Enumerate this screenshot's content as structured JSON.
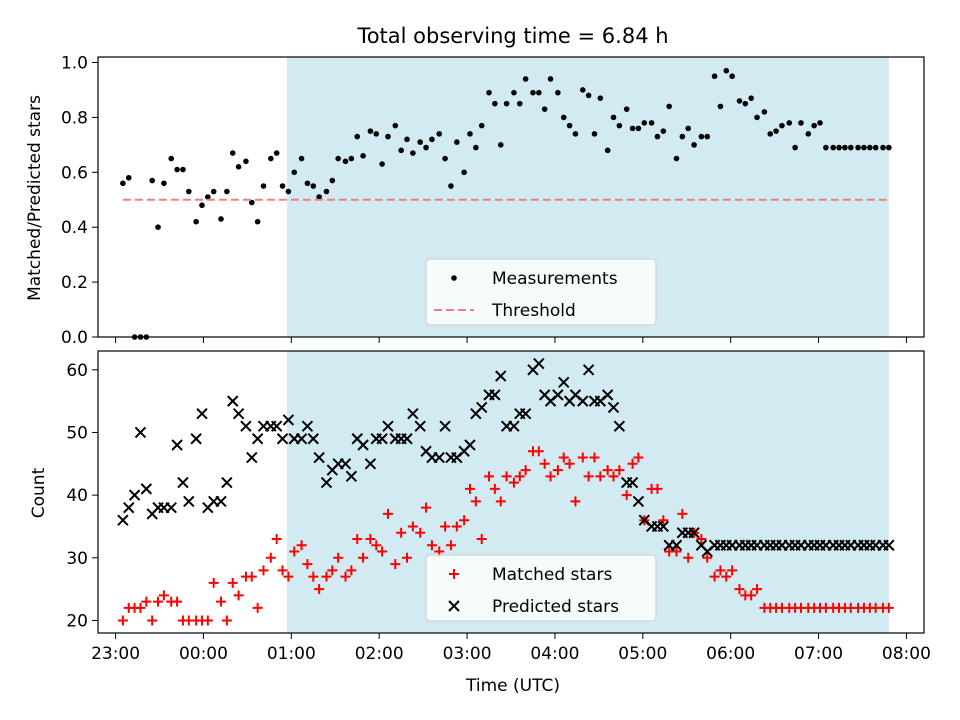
{
  "title": "Total observing time = 6.84 h",
  "xlabel": "Time (UTC)",
  "x_ticks": [
    "23:00",
    "00:00",
    "01:00",
    "02:00",
    "03:00",
    "04:00",
    "05:00",
    "06:00",
    "07:00",
    "08:00"
  ],
  "colors": {
    "shade": "#add8e6",
    "measurement": "#000000",
    "threshold": "#f08080",
    "matched": "#ff0000",
    "predicted": "#000000"
  },
  "chart_data": [
    {
      "type": "scatter",
      "ylabel": "Matched/Predicted stars",
      "ylim": [
        0.0,
        1.02
      ],
      "xlim": [
        "22:48",
        "08:12"
      ],
      "yticks": [
        "0.0",
        "0.2",
        "0.4",
        "0.6",
        "0.8",
        "1.0"
      ],
      "shaded_interval": [
        "00:57",
        "07:48"
      ],
      "legend_position": "lower center",
      "series": [
        {
          "name": "Measurements",
          "marker": "dot",
          "x": [
            "23:05",
            "23:09",
            "23:13",
            "23:17",
            "23:21",
            "23:25",
            "23:29",
            "23:33",
            "23:38",
            "23:42",
            "23:46",
            "23:50",
            "23:55",
            "23:59",
            "00:03",
            "00:07",
            "00:12",
            "00:16",
            "00:20",
            "00:24",
            "00:29",
            "00:33",
            "00:37",
            "00:41",
            "00:46",
            "00:50",
            "00:54",
            "00:58",
            "01:02",
            "01:07",
            "01:11",
            "01:15",
            "01:19",
            "01:24",
            "01:28",
            "01:32",
            "01:37",
            "01:41",
            "01:45",
            "01:49",
            "01:54",
            "01:58",
            "02:02",
            "02:06",
            "02:11",
            "02:15",
            "02:19",
            "02:23",
            "02:28",
            "02:32",
            "02:36",
            "02:41",
            "02:45",
            "02:49",
            "02:53",
            "02:58",
            "03:02",
            "03:06",
            "03:10",
            "03:15",
            "03:19",
            "03:23",
            "03:27",
            "03:32",
            "03:36",
            "03:40",
            "03:45",
            "03:49",
            "03:53",
            "03:57",
            "04:02",
            "04:06",
            "04:10",
            "04:14",
            "04:19",
            "04:23",
            "04:27",
            "04:31",
            "04:36",
            "04:40",
            "04:44",
            "04:49",
            "04:53",
            "04:57",
            "05:01",
            "05:06",
            "05:10",
            "05:14",
            "05:18",
            "05:23",
            "05:27",
            "05:31",
            "05:35",
            "05:40",
            "05:44",
            "05:49",
            "05:53",
            "05:57",
            "06:01",
            "06:06",
            "06:10",
            "06:14",
            "06:18",
            "06:23",
            "06:27",
            "06:31",
            "06:35",
            "06:40",
            "06:44",
            "06:48",
            "06:53",
            "06:57",
            "07:01",
            "07:05",
            "07:10",
            "07:14",
            "07:18",
            "07:22",
            "07:27",
            "07:31",
            "07:35",
            "07:39",
            "07:44",
            "07:48"
          ],
          "y": [
            0.56,
            0.58,
            0.0,
            0.0,
            0.0,
            0.57,
            0.4,
            0.56,
            0.65,
            0.61,
            0.61,
            0.53,
            0.42,
            0.48,
            0.51,
            0.53,
            0.43,
            0.53,
            0.67,
            0.62,
            0.64,
            0.49,
            0.42,
            0.55,
            0.65,
            0.67,
            0.55,
            0.53,
            0.6,
            0.65,
            0.56,
            0.55,
            0.51,
            0.53,
            0.57,
            0.65,
            0.64,
            0.65,
            0.73,
            0.66,
            0.75,
            0.74,
            0.63,
            0.73,
            0.77,
            0.68,
            0.72,
            0.67,
            0.71,
            0.69,
            0.72,
            0.74,
            0.65,
            0.55,
            0.71,
            0.6,
            0.74,
            0.69,
            0.77,
            0.89,
            0.85,
            0.7,
            0.85,
            0.89,
            0.85,
            0.94,
            0.89,
            0.89,
            0.83,
            0.94,
            0.89,
            0.8,
            0.77,
            0.74,
            0.9,
            0.88,
            0.74,
            0.87,
            0.68,
            0.8,
            0.77,
            0.83,
            0.76,
            0.76,
            0.78,
            0.78,
            0.73,
            0.75,
            0.84,
            0.65,
            0.73,
            0.76,
            0.7,
            0.73,
            0.73,
            0.95,
            0.84,
            0.97,
            0.95,
            0.86,
            0.85,
            0.87,
            0.8,
            0.82,
            0.74,
            0.75,
            0.77,
            0.78,
            0.69,
            0.78,
            0.74,
            0.77,
            0.78,
            0.69,
            0.69,
            0.69,
            0.69,
            0.69,
            0.69,
            0.69,
            0.69,
            0.69,
            0.69,
            0.69
          ]
        },
        {
          "name": "Threshold",
          "line_style": "dashed",
          "x": [
            "23:05",
            "07:48"
          ],
          "y": [
            0.5,
            0.5
          ]
        }
      ]
    },
    {
      "type": "scatter",
      "ylabel": "Count",
      "ylim": [
        18,
        63
      ],
      "xlim": [
        "22:48",
        "08:12"
      ],
      "yticks": [
        "20",
        "30",
        "40",
        "50",
        "60"
      ],
      "shaded_interval": [
        "00:57",
        "07:48"
      ],
      "legend_position": "lower center",
      "series": [
        {
          "name": "Matched stars",
          "marker": "plus",
          "x": [
            "23:05",
            "23:09",
            "23:13",
            "23:17",
            "23:21",
            "23:25",
            "23:29",
            "23:33",
            "23:38",
            "23:42",
            "23:46",
            "23:50",
            "23:55",
            "23:59",
            "00:03",
            "00:07",
            "00:12",
            "00:16",
            "00:20",
            "00:24",
            "00:29",
            "00:33",
            "00:37",
            "00:41",
            "00:46",
            "00:50",
            "00:54",
            "00:58",
            "01:02",
            "01:07",
            "01:11",
            "01:15",
            "01:19",
            "01:24",
            "01:28",
            "01:32",
            "01:37",
            "01:41",
            "01:45",
            "01:49",
            "01:54",
            "01:58",
            "02:02",
            "02:06",
            "02:11",
            "02:15",
            "02:19",
            "02:23",
            "02:28",
            "02:32",
            "02:36",
            "02:41",
            "02:45",
            "02:49",
            "02:53",
            "02:58",
            "03:02",
            "03:06",
            "03:10",
            "03:15",
            "03:19",
            "03:23",
            "03:27",
            "03:32",
            "03:36",
            "03:40",
            "03:45",
            "03:49",
            "03:53",
            "03:57",
            "04:02",
            "04:06",
            "04:10",
            "04:14",
            "04:19",
            "04:23",
            "04:27",
            "04:31",
            "04:36",
            "04:40",
            "04:44",
            "04:49",
            "04:53",
            "04:57",
            "05:01",
            "05:06",
            "05:10",
            "05:14",
            "05:18",
            "05:23",
            "05:27",
            "05:31",
            "05:35",
            "05:40",
            "05:44",
            "05:49",
            "05:53",
            "05:57",
            "06:01",
            "06:06",
            "06:10",
            "06:14",
            "06:18",
            "06:23",
            "06:27",
            "06:31",
            "06:35",
            "06:40",
            "06:44",
            "06:48",
            "06:53",
            "06:57",
            "07:01",
            "07:05",
            "07:10",
            "07:14",
            "07:18",
            "07:22",
            "07:27",
            "07:31",
            "07:35",
            "07:39",
            "07:44",
            "07:48"
          ],
          "y": [
            20,
            22,
            22,
            22,
            23,
            20,
            23,
            24,
            23,
            23,
            20,
            20,
            20,
            20,
            20,
            26,
            23,
            20,
            26,
            24,
            27,
            27,
            22,
            28,
            30,
            33,
            28,
            27,
            31,
            32,
            29,
            27,
            25,
            27,
            28,
            30,
            27,
            28,
            33,
            30,
            33,
            32,
            31,
            37,
            29,
            34,
            30,
            35,
            34,
            38,
            32,
            31,
            35,
            32,
            35,
            36,
            41,
            39,
            33,
            43,
            41,
            39,
            43,
            42,
            43,
            44,
            47,
            47,
            45,
            43,
            44,
            46,
            45,
            39,
            46,
            43,
            46,
            43,
            44,
            43,
            44,
            40,
            45,
            46,
            36,
            41,
            41,
            36,
            31,
            31,
            37,
            30,
            34,
            33,
            30,
            27,
            28,
            27,
            28,
            25,
            24,
            24,
            25,
            22,
            22,
            22,
            22,
            22,
            22,
            22,
            22,
            22,
            22,
            22,
            22,
            22,
            22,
            22,
            22,
            22,
            22,
            22,
            22,
            22
          ]
        },
        {
          "name": "Predicted stars",
          "marker": "x",
          "x": [
            "23:05",
            "23:09",
            "23:13",
            "23:17",
            "23:21",
            "23:25",
            "23:29",
            "23:33",
            "23:38",
            "23:42",
            "23:46",
            "23:50",
            "23:55",
            "23:59",
            "00:03",
            "00:07",
            "00:12",
            "00:16",
            "00:20",
            "00:24",
            "00:29",
            "00:33",
            "00:37",
            "00:41",
            "00:46",
            "00:50",
            "00:54",
            "00:58",
            "01:02",
            "01:07",
            "01:11",
            "01:15",
            "01:19",
            "01:24",
            "01:28",
            "01:32",
            "01:37",
            "01:41",
            "01:45",
            "01:49",
            "01:54",
            "01:58",
            "02:02",
            "02:06",
            "02:11",
            "02:15",
            "02:19",
            "02:23",
            "02:28",
            "02:32",
            "02:36",
            "02:41",
            "02:45",
            "02:49",
            "02:53",
            "02:58",
            "03:02",
            "03:06",
            "03:10",
            "03:15",
            "03:19",
            "03:23",
            "03:27",
            "03:32",
            "03:36",
            "03:40",
            "03:45",
            "03:49",
            "03:53",
            "03:57",
            "04:02",
            "04:06",
            "04:10",
            "04:14",
            "04:19",
            "04:23",
            "04:27",
            "04:31",
            "04:36",
            "04:40",
            "04:44",
            "04:49",
            "04:53",
            "04:57",
            "05:01",
            "05:06",
            "05:10",
            "05:14",
            "05:18",
            "05:23",
            "05:27",
            "05:31",
            "05:35",
            "05:40",
            "05:44",
            "05:49",
            "05:53",
            "05:57",
            "06:01",
            "06:06",
            "06:10",
            "06:14",
            "06:18",
            "06:23",
            "06:27",
            "06:31",
            "06:35",
            "06:40",
            "06:44",
            "06:48",
            "06:53",
            "06:57",
            "07:01",
            "07:05",
            "07:10",
            "07:14",
            "07:18",
            "07:22",
            "07:27",
            "07:31",
            "07:35",
            "07:39",
            "07:44",
            "07:48"
          ],
          "y": [
            36,
            38,
            40,
            50,
            41,
            37,
            38,
            38,
            38,
            48,
            42,
            39,
            49,
            53,
            38,
            39,
            39,
            42,
            55,
            53,
            51,
            46,
            49,
            51,
            51,
            51,
            49,
            52,
            49,
            49,
            51,
            49,
            46,
            42,
            44,
            45,
            45,
            43,
            49,
            48,
            45,
            49,
            49,
            51,
            49,
            49,
            49,
            53,
            51,
            47,
            46,
            46,
            51,
            46,
            46,
            47,
            48,
            53,
            54,
            56,
            56,
            59,
            51,
            51,
            53,
            53,
            60,
            61,
            56,
            55,
            56,
            58,
            55,
            56,
            55,
            60,
            55,
            55,
            56,
            54,
            51,
            42,
            42,
            39,
            36,
            35,
            35,
            35,
            32,
            32,
            34,
            34,
            34,
            32,
            31,
            32,
            32,
            32,
            32,
            32,
            32,
            32,
            32,
            32,
            32,
            32,
            32,
            32,
            32,
            32,
            32,
            32,
            32,
            32,
            32,
            32,
            32,
            32,
            32,
            32,
            32,
            32,
            32,
            32
          ]
        }
      ]
    }
  ]
}
